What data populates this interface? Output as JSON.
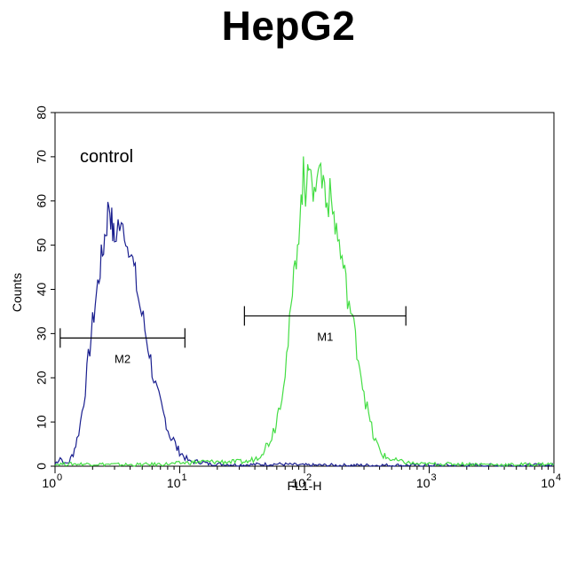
{
  "title": "HepG2",
  "chart_data": {
    "type": "line",
    "xlabel": "FL1-H",
    "ylabel": "Counts",
    "x_scale": "log",
    "xlim": [
      1,
      10000
    ],
    "ylim": [
      0,
      80
    ],
    "y_ticks": [
      "0",
      "10",
      "20",
      "30",
      "40",
      "50",
      "60",
      "70",
      "80"
    ],
    "x_ticks": [
      {
        "base": "10",
        "exp": "0",
        "value": 1
      },
      {
        "base": "10",
        "exp": "1",
        "value": 10
      },
      {
        "base": "10",
        "exp": "2",
        "value": 100
      },
      {
        "base": "10",
        "exp": "3",
        "value": 1000
      },
      {
        "base": "10",
        "exp": "4",
        "value": 10000
      }
    ],
    "annotations": [
      {
        "text": "control"
      }
    ],
    "gates": [
      {
        "label": "M2",
        "x_start": 1.1,
        "x_end": 11,
        "y": 29
      },
      {
        "label": "M1",
        "x_start": 33,
        "x_end": 650,
        "y": 34
      }
    ],
    "series": [
      {
        "color": "#1a1f8f",
        "points": [
          [
            1.0,
            0.5
          ],
          [
            1.1,
            2
          ],
          [
            1.2,
            0.5
          ],
          [
            1.3,
            1
          ],
          [
            1.4,
            3
          ],
          [
            1.5,
            6
          ],
          [
            1.6,
            10
          ],
          [
            1.7,
            15
          ],
          [
            1.8,
            21
          ],
          [
            1.9,
            27
          ],
          [
            2.0,
            32
          ],
          [
            2.1,
            37
          ],
          [
            2.2,
            41
          ],
          [
            2.3,
            45
          ],
          [
            2.4,
            48
          ],
          [
            2.5,
            52
          ],
          [
            2.6,
            55
          ],
          [
            2.7,
            60
          ],
          [
            2.8,
            57
          ],
          [
            2.9,
            53
          ],
          [
            3.0,
            51
          ],
          [
            3.2,
            55
          ],
          [
            3.4,
            53
          ],
          [
            3.6,
            54
          ],
          [
            3.8,
            50
          ],
          [
            4.0,
            51
          ],
          [
            4.2,
            46
          ],
          [
            4.5,
            41
          ],
          [
            4.8,
            36
          ],
          [
            5.1,
            33
          ],
          [
            5.4,
            29
          ],
          [
            5.7,
            26
          ],
          [
            6.0,
            22
          ],
          [
            6.4,
            18
          ],
          [
            6.8,
            15
          ],
          [
            7.3,
            12
          ],
          [
            7.8,
            10
          ],
          [
            8.3,
            7
          ],
          [
            8.9,
            6
          ],
          [
            9.5,
            4
          ],
          [
            10.2,
            3
          ],
          [
            11,
            2
          ],
          [
            12,
            1
          ],
          [
            13,
            1
          ],
          [
            15,
            1
          ],
          [
            17,
            0.5
          ],
          [
            20,
            0.5
          ],
          [
            30,
            0.3
          ],
          [
            60,
            0.5
          ],
          [
            100,
            0.2
          ],
          [
            300,
            0.2
          ],
          [
            1000,
            0.2
          ],
          [
            10000,
            0.2
          ]
        ]
      },
      {
        "color": "#44dd44",
        "points": [
          [
            1.0,
            0.5
          ],
          [
            2,
            0.5
          ],
          [
            4,
            0.3
          ],
          [
            8,
            0.5
          ],
          [
            15,
            1
          ],
          [
            25,
            1
          ],
          [
            35,
            1
          ],
          [
            42,
            2
          ],
          [
            48,
            4
          ],
          [
            53,
            6
          ],
          [
            58,
            9
          ],
          [
            62,
            13
          ],
          [
            66,
            17
          ],
          [
            70,
            22
          ],
          [
            74,
            28
          ],
          [
            78,
            35
          ],
          [
            82,
            42
          ],
          [
            86,
            48
          ],
          [
            90,
            54
          ],
          [
            94,
            59
          ],
          [
            98,
            66
          ],
          [
            102,
            60
          ],
          [
            106,
            72
          ],
          [
            110,
            68
          ],
          [
            115,
            60
          ],
          [
            120,
            66
          ],
          [
            126,
            63
          ],
          [
            132,
            70
          ],
          [
            138,
            64
          ],
          [
            145,
            66
          ],
          [
            152,
            59
          ],
          [
            160,
            61
          ],
          [
            168,
            58
          ],
          [
            176,
            55
          ],
          [
            185,
            52
          ],
          [
            195,
            48
          ],
          [
            205,
            45
          ],
          [
            215,
            41
          ],
          [
            228,
            37
          ],
          [
            242,
            33
          ],
          [
            256,
            29
          ],
          [
            270,
            25
          ],
          [
            285,
            21
          ],
          [
            300,
            17
          ],
          [
            318,
            13
          ],
          [
            336,
            10
          ],
          [
            355,
            7
          ],
          [
            380,
            5
          ],
          [
            410,
            3
          ],
          [
            450,
            2
          ],
          [
            500,
            1.5
          ],
          [
            600,
            1
          ],
          [
            800,
            0.5
          ],
          [
            1000,
            0.5
          ],
          [
            2000,
            0.5
          ],
          [
            4000,
            0.3
          ],
          [
            10000,
            0.5
          ]
        ]
      }
    ]
  }
}
